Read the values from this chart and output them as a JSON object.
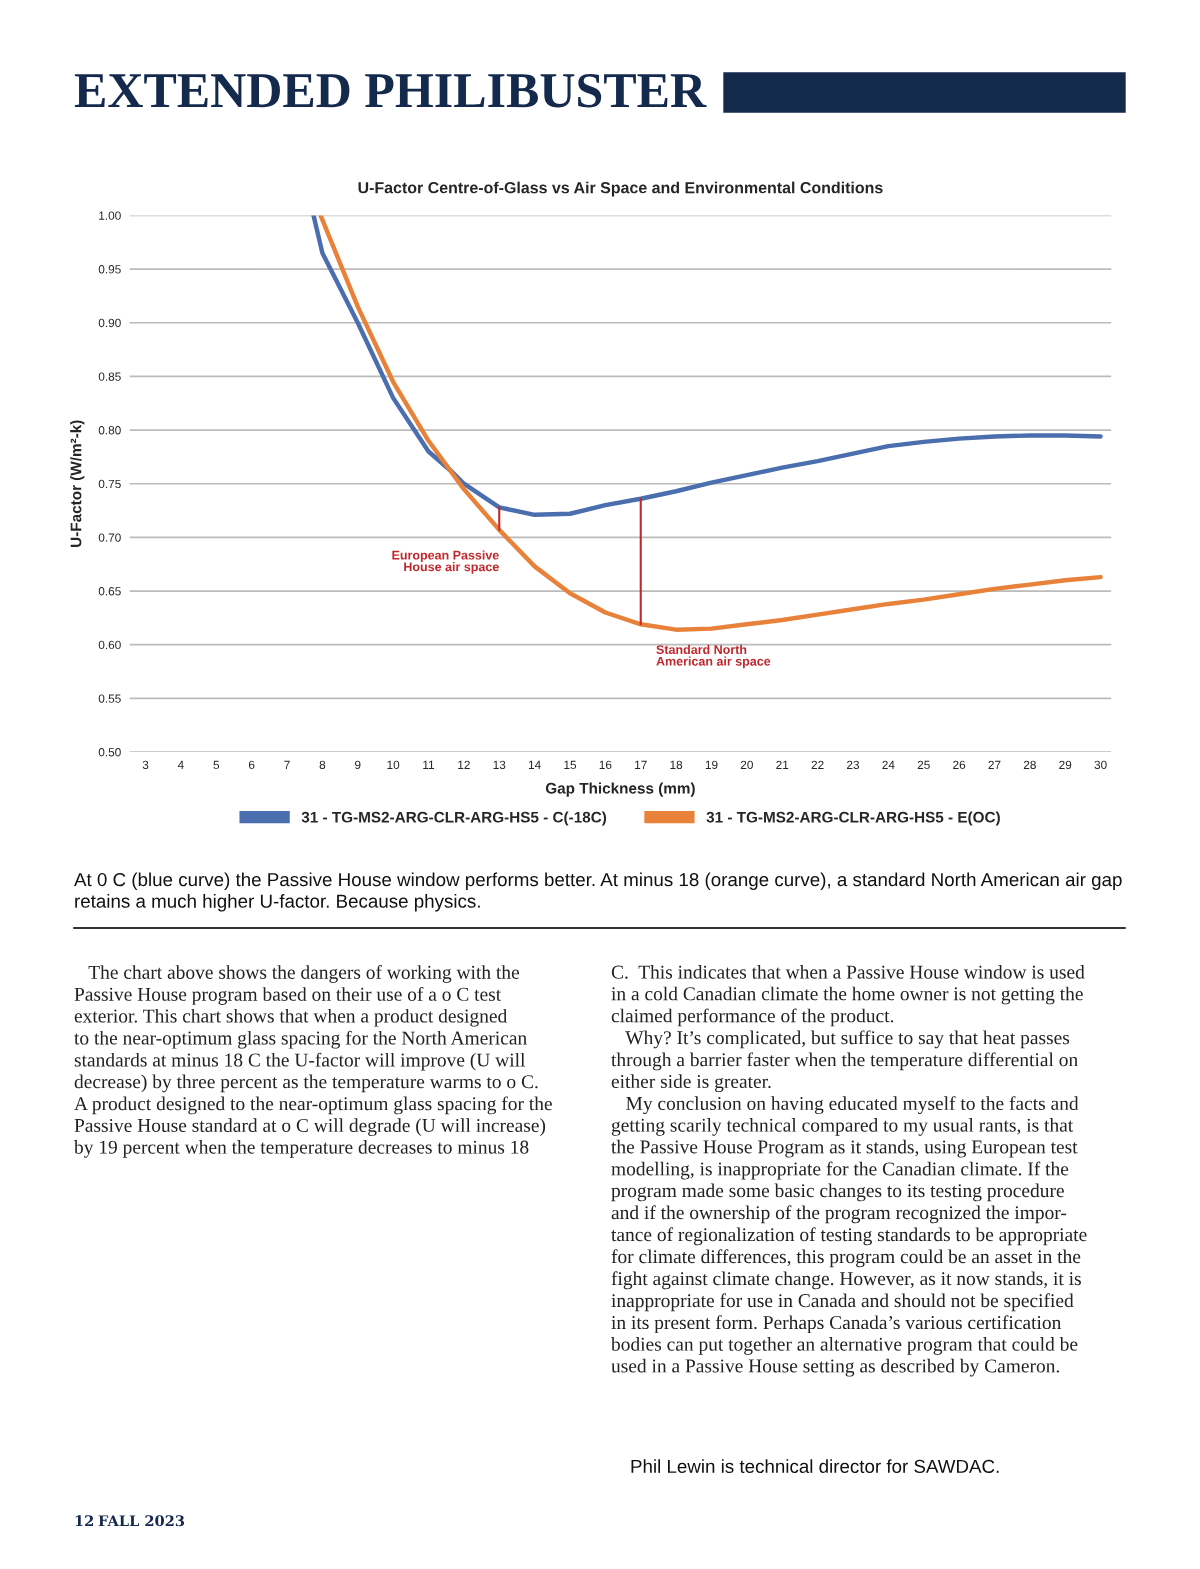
{
  "chart_data": {
    "type": "line",
    "title": "U-Factor Centre-of-Glass vs Air Space and Environmental Conditions",
    "xlabel": "Gap Thickness (mm)",
    "ylabel": "U-Factor (W/m²-k)",
    "xlim": [
      2.55,
      30.3
    ],
    "xticks": [
      3,
      4,
      5,
      6,
      7,
      8,
      9,
      10,
      11,
      12,
      13,
      14,
      15,
      16,
      17,
      18,
      19,
      20,
      21,
      22,
      23,
      24,
      25,
      26,
      27,
      28,
      29,
      30
    ],
    "ylim": [
      0.5,
      1.0
    ],
    "yticks": [
      {
        "value": 0.5,
        "label": "0.50"
      },
      {
        "value": 0.55,
        "label": "0.55"
      },
      {
        "value": 0.6,
        "label": "0.60"
      },
      {
        "value": 0.65,
        "label": "0.65"
      },
      {
        "value": 0.7,
        "label": "0.70"
      },
      {
        "value": 0.75,
        "label": "0.75"
      },
      {
        "value": 0.8,
        "label": "0.80"
      },
      {
        "value": 0.85,
        "label": "0.85"
      },
      {
        "value": 0.9,
        "label": "0.90"
      },
      {
        "value": 0.95,
        "label": "0.95"
      },
      {
        "value": 1.0,
        "label": "1.00"
      }
    ],
    "grid": "y",
    "legend": "bottom",
    "line_style": "solid",
    "marker": "none",
    "series": [
      {
        "name": "31 - TG-MS2-ARG-CLR-ARG-HS5 - C(-18C)",
        "color": "#4a6eae",
        "x": [
          7.75,
          8,
          9,
          10,
          11,
          11.7,
          12,
          13,
          14,
          15,
          16,
          17,
          18,
          19,
          20,
          21,
          22,
          23,
          24,
          25,
          26,
          27,
          28,
          29,
          30
        ],
        "values": [
          1.0,
          0.965,
          0.9,
          0.83,
          0.78,
          0.76,
          0.75,
          0.728,
          0.721,
          0.722,
          0.73,
          0.736,
          0.743,
          0.751,
          0.758,
          0.765,
          0.771,
          0.778,
          0.785,
          0.789,
          0.792,
          0.794,
          0.795,
          0.795,
          0.794
        ]
      },
      {
        "name": "31 - TG-MS2-ARG-CLR-ARG-HS5 - E(OC)",
        "color": "#e8823a",
        "x": [
          7.95,
          9,
          10,
          11,
          12,
          13,
          14,
          15,
          16,
          17,
          18,
          19,
          20,
          21,
          22,
          23,
          24,
          25,
          26,
          27,
          28,
          29,
          30
        ],
        "values": [
          1.0,
          0.915,
          0.845,
          0.79,
          0.745,
          0.707,
          0.673,
          0.648,
          0.63,
          0.619,
          0.614,
          0.615,
          0.619,
          0.623,
          0.628,
          0.633,
          0.638,
          0.642,
          0.647,
          0.652,
          0.656,
          0.66,
          0.663
        ]
      },
      {
        "color": "#c0282d",
        "x": [
          13,
          13
        ],
        "values": [
          0.707,
          0.728
        ]
      },
      {
        "color": "#c0282d",
        "x": [
          17,
          17
        ],
        "values": [
          0.619,
          0.736
        ]
      }
    ],
    "annotations": [
      "European Passive\nHouse air space",
      "Standard North\nAmerican air space",
      "EXTENDED PHILIBUSTER",
      "At 0 C (blue curve) the Passive House window performs better. At minus 18 (orange curve), a standard North American air gap\nretains a much higher U-factor. Because physics.",
      "   The chart above shows the dangers of working with the\nPassive House program based on their use of a o C test\nexterior. This chart shows that when a product designed\nto the near-optimum glass spacing for the North American\nstandards at minus 18 C the U-factor will improve (U will\ndecrease) by three percent as the temperature warms to o C.\nA product designed to the near-optimum glass spacing for the\nPassive House standard at o C will degrade (U will increase)\nby 19 percent when the temperature decreases to minus 18",
      "C.  This indicates that when a Passive House window is used\nin a cold Canadian climate the home owner is not getting the\nclaimed performance of the product.\n   Why? It’s complicated, but suffice to say that heat passes\nthrough a barrier faster when the temperature differential on\neither side is greater.\n   My conclusion on having educated myself to the facts and\ngetting scarily technical compared to my usual rants, is that\nthe Passive House Program as it stands, using European test\nmodelling, is inappropriate for the Canadian climate. If the\nprogram made some basic changes to its testing procedure\nand if the ownership of the program recognized the impor-\ntance of regionalization of testing standards to be appropriate\nfor climate differences, this program could be an asset in the\nfight against climate change. However, as it now stands, it is\ninappropriate for use in Canada and should not be specified\nin its present form. Perhaps Canada’s various certification\nbodies can put together an alternative program that could be\nused in a Passive House setting as described by Cameron.",
      "Phil Lewin is technical director for SAWDAC.",
      "12",
      "FALL 2023"
    ]
  }
}
